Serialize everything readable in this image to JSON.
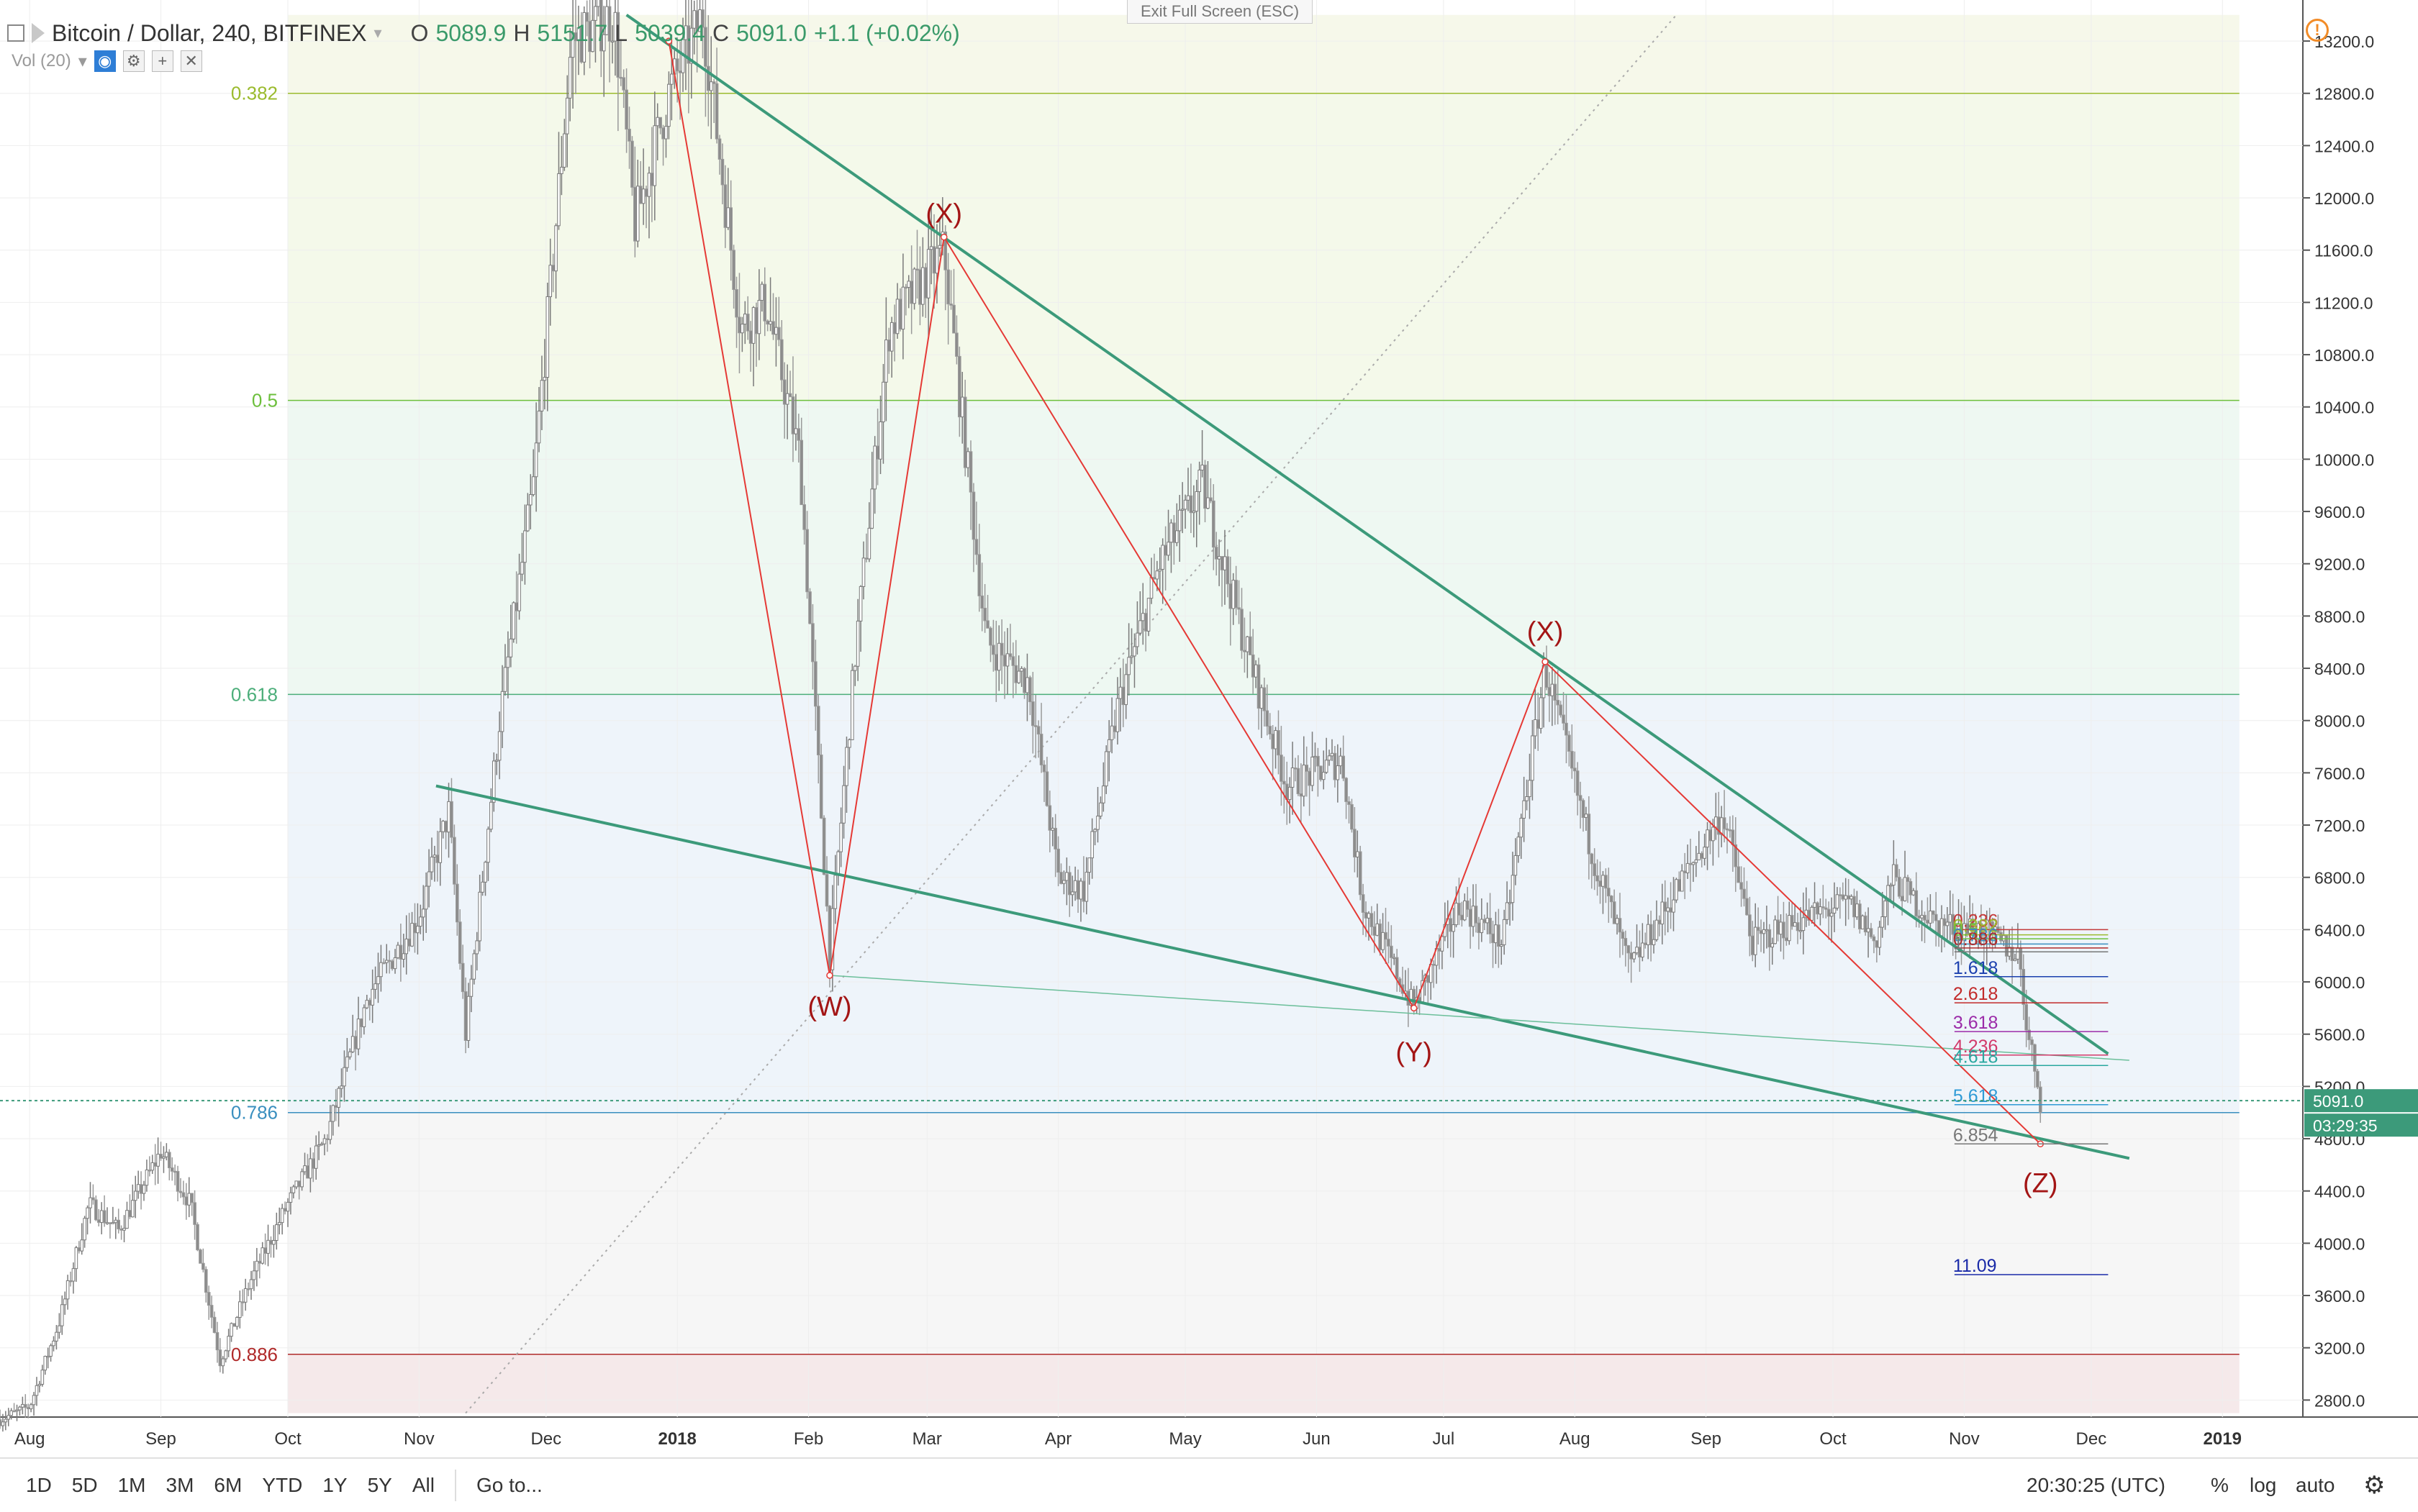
{
  "header": {
    "symbol": "Bitcoin / Dollar, 240, BITFINEX",
    "o_label": "O",
    "o_value": "5089.9",
    "h_label": "H",
    "h_value": "5151.7",
    "l_label": "L",
    "l_value": "5039.4",
    "c_label": "C",
    "c_value": "5091.0",
    "change": "+1.1 (+0.02%)",
    "volume_label": "Vol (20)"
  },
  "exit_fullscreen": "Exit Full Screen (ESC)",
  "toolbar": {
    "timeframes": [
      "1D",
      "5D",
      "1M",
      "3M",
      "6M",
      "YTD",
      "1Y",
      "5Y",
      "All"
    ],
    "goto": "Go to...",
    "clock": "20:30:25 (UTC)",
    "percent": "%",
    "log": "log",
    "auto": "auto"
  },
  "colors": {
    "up": "#53b987",
    "down": "#eb4d5c",
    "trend": "#3c9a7a",
    "wave": "#e53935",
    "label_red": "#a31515",
    "price_tag": "#3c9a7a"
  },
  "chart_data": {
    "type": "candlestick",
    "symbol": "BTCUSD",
    "exchange": "BITFINEX",
    "interval": "240",
    "ylim": [
      2700,
      13400
    ],
    "y_ticks": [
      13200,
      12800,
      12400,
      12000,
      11600,
      11200,
      10800,
      10400,
      10000,
      9600,
      9200,
      8800,
      8400,
      8000,
      7600,
      7200,
      6800,
      6400,
      6000,
      5600,
      5200,
      4800,
      4400,
      4000,
      3600,
      3200,
      2800
    ],
    "y_tick_labels": [
      "13200.0",
      "12800.0",
      "12400.0",
      "12000.0",
      "11600.0",
      "11200.0",
      "10800.0",
      "10400.0",
      "10000.0",
      "9600.0",
      "9200.0",
      "8800.0",
      "8400.0",
      "8000.0",
      "7600.0",
      "7200.0",
      "6800.0",
      "6400.0",
      "6000.0",
      "5600.0",
      "5200.0",
      "4800.0",
      "4400.0",
      "4000.0",
      "3600.0",
      "3200.0",
      "2800.0"
    ],
    "x_range": [
      "2017-07-25",
      "2019-01-20"
    ],
    "x_ticks": [
      {
        "label": "Aug",
        "date": "2017-08-01"
      },
      {
        "label": "Sep",
        "date": "2017-09-01"
      },
      {
        "label": "Oct",
        "date": "2017-10-01"
      },
      {
        "label": "Nov",
        "date": "2017-11-01"
      },
      {
        "label": "Dec",
        "date": "2017-12-01"
      },
      {
        "label": "2018",
        "date": "2018-01-01"
      },
      {
        "label": "Feb",
        "date": "2018-02-01"
      },
      {
        "label": "Mar",
        "date": "2018-03-01"
      },
      {
        "label": "Apr",
        "date": "2018-04-01"
      },
      {
        "label": "May",
        "date": "2018-05-01"
      },
      {
        "label": "Jun",
        "date": "2018-06-01"
      },
      {
        "label": "Jul",
        "date": "2018-07-01"
      },
      {
        "label": "Aug",
        "date": "2018-08-01"
      },
      {
        "label": "Sep",
        "date": "2018-09-01"
      },
      {
        "label": "Oct",
        "date": "2018-10-01"
      },
      {
        "label": "Nov",
        "date": "2018-11-01"
      },
      {
        "label": "Dec",
        "date": "2018-12-01"
      },
      {
        "label": "2019",
        "date": "2019-01-01"
      }
    ],
    "price_path": [
      [
        "2017-07-25",
        2650
      ],
      [
        "2017-08-01",
        2750
      ],
      [
        "2017-08-08",
        3400
      ],
      [
        "2017-08-15",
        4300
      ],
      [
        "2017-08-22",
        4100
      ],
      [
        "2017-09-01",
        4700
      ],
      [
        "2017-09-08",
        4300
      ],
      [
        "2017-09-15",
        3100
      ],
      [
        "2017-09-22",
        3700
      ],
      [
        "2017-10-01",
        4300
      ],
      [
        "2017-10-10",
        4800
      ],
      [
        "2017-10-20",
        5900
      ],
      [
        "2017-11-01",
        6500
      ],
      [
        "2017-11-08",
        7300
      ],
      [
        "2017-11-12",
        5600
      ],
      [
        "2017-11-20",
        8000
      ],
      [
        "2017-11-28",
        9800
      ],
      [
        "2017-12-07",
        13200
      ],
      [
        "2017-12-17",
        13400
      ],
      [
        "2017-12-22",
        11800
      ],
      [
        "2017-12-30",
        12800
      ],
      [
        "2018-01-07",
        13400
      ],
      [
        "2018-01-16",
        11000
      ],
      [
        "2018-01-22",
        11200
      ],
      [
        "2018-01-30",
        10000
      ],
      [
        "2018-02-06",
        6200
      ],
      [
        "2018-02-12",
        8500
      ],
      [
        "2018-02-20",
        11000
      ],
      [
        "2018-03-05",
        11600
      ],
      [
        "2018-03-15",
        8600
      ],
      [
        "2018-03-25",
        8300
      ],
      [
        "2018-04-01",
        6800
      ],
      [
        "2018-04-07",
        6700
      ],
      [
        "2018-04-15",
        8100
      ],
      [
        "2018-04-25",
        9200
      ],
      [
        "2018-05-05",
        9800
      ],
      [
        "2018-05-15",
        8600
      ],
      [
        "2018-05-25",
        7500
      ],
      [
        "2018-06-07",
        7700
      ],
      [
        "2018-06-12",
        6600
      ],
      [
        "2018-06-24",
        5800
      ],
      [
        "2018-07-05",
        6600
      ],
      [
        "2018-07-15",
        6300
      ],
      [
        "2018-07-25",
        8400
      ],
      [
        "2018-08-05",
        7000
      ],
      [
        "2018-08-14",
        6100
      ],
      [
        "2018-08-25",
        6700
      ],
      [
        "2018-09-05",
        7300
      ],
      [
        "2018-09-12",
        6300
      ],
      [
        "2018-09-25",
        6500
      ],
      [
        "2018-10-05",
        6600
      ],
      [
        "2018-10-11",
        6300
      ],
      [
        "2018-10-15",
        6800
      ],
      [
        "2018-10-25",
        6450
      ],
      [
        "2018-11-05",
        6400
      ],
      [
        "2018-11-14",
        6200
      ],
      [
        "2018-11-16",
        5600
      ],
      [
        "2018-11-18",
        5300
      ],
      [
        "2018-11-19",
        5091
      ]
    ],
    "last_price": "5091.0",
    "countdown": "03:29:35",
    "fib_retracement_levels": [
      {
        "label": "0.382",
        "price": 12800,
        "color": "#9bbb2e"
      },
      {
        "label": "0.5",
        "price": 10450,
        "color": "#6cbf3c"
      },
      {
        "label": "0.618",
        "price": 8200,
        "color": "#4cae7a"
      },
      {
        "label": "0.786",
        "price": 5000,
        "color": "#3a8fbf"
      },
      {
        "label": "0.886",
        "price": 3150,
        "color": "#b02a2a"
      }
    ],
    "fib_zones": [
      {
        "from": 13400,
        "to": 12800,
        "color": "#f6f8ea"
      },
      {
        "from": 12800,
        "to": 10450,
        "color": "#f4f9ea"
      },
      {
        "from": 10450,
        "to": 8200,
        "color": "#eef8f2"
      },
      {
        "from": 8200,
        "to": 5000,
        "color": "#eef4fa"
      },
      {
        "from": 5000,
        "to": 3150,
        "color": "#f6f6f6"
      },
      {
        "from": 3150,
        "to": 2700,
        "color": "#f5e9ea"
      }
    ],
    "fib_extension_labels": [
      {
        "label": "0.236",
        "price": 6400,
        "color": "#c43a3a"
      },
      {
        "label": "0.382",
        "price": 6360,
        "color": "#9bbb2e"
      },
      {
        "label": "0.5",
        "price": 6330,
        "color": "#6cbf3c"
      },
      {
        "label": "0.786",
        "price": 6290,
        "color": "#3a8fbf"
      },
      {
        "label": "0.886",
        "price": 6260,
        "color": "#b02a2a"
      },
      {
        "label": "1",
        "price": 6230,
        "color": "#777777"
      },
      {
        "label": "1.618",
        "price": 6040,
        "color": "#1a3fae"
      },
      {
        "label": "2.618",
        "price": 5840,
        "color": "#c22a2a"
      },
      {
        "label": "3.618",
        "price": 5620,
        "color": "#9b2aa8"
      },
      {
        "label": "4.236",
        "price": 5440,
        "color": "#d23a6a"
      },
      {
        "label": "4.618",
        "price": 5360,
        "color": "#2aa8a0"
      },
      {
        "label": "5.618",
        "price": 5060,
        "color": "#2e9ad6"
      },
      {
        "label": "6.854",
        "price": 4760,
        "color": "#777777"
      },
      {
        "label": "11.09",
        "price": 3760,
        "color": "#1a2aa8"
      }
    ],
    "wave_labels": [
      {
        "label": "(W)",
        "date": "2018-02-06",
        "price": 5950,
        "pos": "below"
      },
      {
        "label": "(X)",
        "date": "2018-03-05",
        "price": 11800,
        "pos": "above"
      },
      {
        "label": "(Y)",
        "date": "2018-06-24",
        "price": 5600,
        "pos": "below"
      },
      {
        "label": "(X)",
        "date": "2018-07-25",
        "price": 8600,
        "pos": "above"
      },
      {
        "label": "(Z)",
        "date": "2018-11-19",
        "price": 4600,
        "pos": "below"
      }
    ],
    "wave_path": [
      [
        "2017-12-30",
        13200
      ],
      [
        "2018-02-06",
        6050
      ],
      [
        "2018-03-05",
        11700
      ],
      [
        "2018-06-24",
        5800
      ],
      [
        "2018-07-25",
        8450
      ],
      [
        "2018-11-19",
        4760
      ]
    ],
    "trendlines": [
      {
        "from": [
          "2017-12-20",
          13400
        ],
        "to": [
          "2018-12-05",
          5450
        ],
        "color": "#3c9a7a",
        "width": 4
      },
      {
        "from": [
          "2017-11-05",
          7500
        ],
        "to": [
          "2018-12-10",
          4650
        ],
        "color": "#3c9a7a",
        "width": 4
      },
      {
        "from": [
          "2018-02-06",
          6050
        ],
        "to": [
          "2018-12-10",
          5400
        ],
        "color": "#6cbf9a",
        "width": 1.5
      }
    ],
    "dotted_line": {
      "from": [
        "2017-11-12",
        2700
      ],
      "to": [
        "2018-08-25",
        13400
      ]
    }
  }
}
